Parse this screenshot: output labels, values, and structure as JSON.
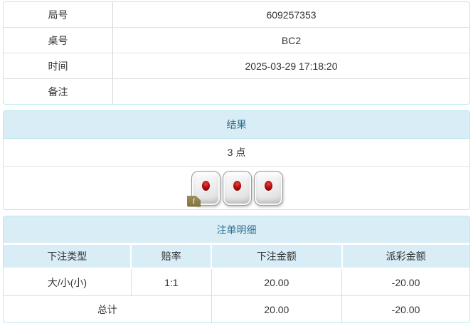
{
  "info_table": {
    "rows": [
      {
        "label": "局号",
        "value": "609257353"
      },
      {
        "label": "桌号",
        "value": "BC2"
      },
      {
        "label": "时间",
        "value": "2025-03-29 17:18:20"
      },
      {
        "label": "备注",
        "value": ""
      }
    ]
  },
  "result_panel": {
    "title": "结果",
    "points": "3 点",
    "dice": [
      1,
      1,
      1
    ],
    "info_badge": "i"
  },
  "bets_panel": {
    "title": "注单明细",
    "columns": [
      "下注类型",
      "赔率",
      "下注金额",
      "派彩金额"
    ],
    "rows": [
      {
        "type": "大/小(小)",
        "odds": "1:1",
        "bet": "20.00",
        "payout": "-20.00"
      }
    ],
    "total": {
      "label": "总计",
      "bet": "20.00",
      "payout": "-20.00"
    }
  },
  "colors": {
    "accent_bg": "#d9edf7",
    "accent_text": "#31708f",
    "panel_border": "#bce8f1",
    "divider": "#dddddd",
    "text": "#333333",
    "negative": "#f42a2a"
  }
}
